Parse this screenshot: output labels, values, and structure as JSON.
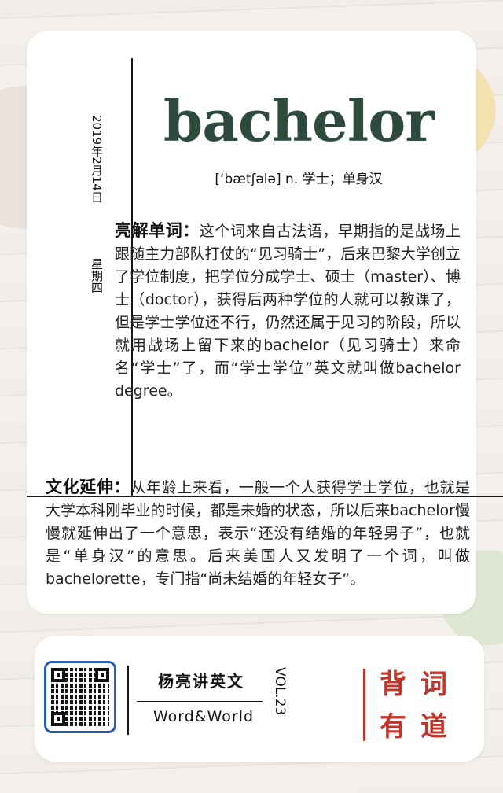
{
  "date": "2019年2月14日",
  "weekday": "星期四",
  "word": "bachelor",
  "pronunciation": "[‘bætʃələ] n. 学士；单身汉",
  "explain": {
    "heading": "亮解单词：",
    "text": "这个词来自古法语，早期指的是战场上跟随主力部队打仗的“见习骑士”，后来巴黎大学创立了学位制度，把学位分成学士、硕士（master）、博士（doctor），获得后两种学位的人就可以教课了，但是学士学位还不行，仍然还属于见习的阶段，所以就用战场上留下来的bachelor（见习骑士）来命名“学士”了，而“学士学位”英文就叫做bachelor degree。"
  },
  "culture": {
    "heading": "文化延伸：",
    "text": "从年龄上来看，一般一个人获得学士学位，也就是大学本科刚毕业的时候，都是未婚的状态，所以后来bachelor慢慢就延伸出了一个意思，表示“还没有结婚的年轻男子”，也就是“单身汉”的意思。后来美国人又发明了一个词，叫做bachelorette，专门指“尚未结婚的年轻女子”。"
  },
  "footer": {
    "qr_icon": "qr-code-icon",
    "brand_cn": "杨亮讲英文",
    "brand_en": "Word&World",
    "vol": "VOL.23",
    "slogan": [
      "背",
      "词",
      "有",
      "道"
    ],
    "accent_color": "#c0352c"
  }
}
